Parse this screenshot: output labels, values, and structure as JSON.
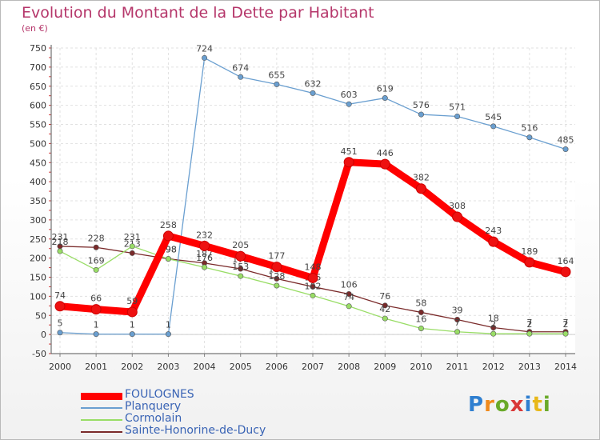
{
  "title": "Evolution du Montant de la Dette par Habitant",
  "subtitle": "(en €)",
  "logo": {
    "text": "Proxiti",
    "letters": [
      "P",
      "r",
      "o",
      "x",
      "i",
      "t",
      "i"
    ],
    "colors": [
      "#2f7fd0",
      "#f08a1c",
      "#6aaa2a",
      "#d93838",
      "#2f7fd0",
      "#e8b81a",
      "#6aaa2a"
    ]
  },
  "chart_data": {
    "type": "line",
    "title": "Evolution du Montant de la Dette par Habitant",
    "ylabel": "(en €)",
    "xlabel": "",
    "ylim": [
      -50,
      750
    ],
    "yticks": [
      -50,
      0,
      50,
      100,
      150,
      200,
      250,
      300,
      350,
      400,
      450,
      500,
      550,
      600,
      650,
      700,
      750
    ],
    "grid": true,
    "categories": [
      "2000",
      "2001",
      "2002",
      "2003",
      "2004",
      "2005",
      "2006",
      "2007",
      "2008",
      "2009",
      "2010",
      "2011",
      "2012",
      "2013",
      "2014"
    ],
    "series": [
      {
        "name": "FOULOGNES",
        "color": "#ff0000",
        "values": [
          74,
          66,
          59,
          258,
          232,
          205,
          177,
          148,
          451,
          446,
          382,
          308,
          243,
          189,
          164
        ],
        "labels": [
          "74",
          "66",
          "59",
          "258",
          "232",
          "205",
          "177",
          "148",
          "451",
          "446",
          "382",
          "308",
          "243",
          "189",
          "164"
        ]
      },
      {
        "name": "Planquery",
        "color": "#6a9fd0",
        "values": [
          5,
          1,
          1,
          1,
          724,
          674,
          655,
          632,
          603,
          619,
          576,
          571,
          545,
          516,
          485
        ],
        "labels": [
          "5",
          "1",
          "1",
          "1",
          "724",
          "674",
          "655",
          "632",
          "603",
          "619",
          "576",
          "571",
          "545",
          "516",
          "485"
        ]
      },
      {
        "name": "Cormolain",
        "color": "#99dd66",
        "values": [
          218,
          169,
          231,
          198,
          176,
          153,
          128,
          102,
          74,
          42,
          16,
          7,
          2,
          2,
          2
        ],
        "labels": [
          "218",
          "169",
          "231",
          "198",
          "176",
          "153",
          "128",
          "102",
          "74",
          "42",
          "16",
          "7",
          "2",
          "2",
          "2"
        ]
      },
      {
        "name": "Sainte-Honorine-de-Ducy",
        "color": "#7a2a2a",
        "values": [
          231,
          228,
          213,
          198,
          187,
          172,
          146,
          125,
          106,
          76,
          58,
          39,
          18,
          7,
          7
        ],
        "labels": [
          "231",
          "228",
          "213",
          "198",
          "187",
          "172",
          "146",
          "125",
          "106",
          "76",
          "58",
          "39",
          "18",
          "7",
          "7"
        ]
      }
    ]
  }
}
